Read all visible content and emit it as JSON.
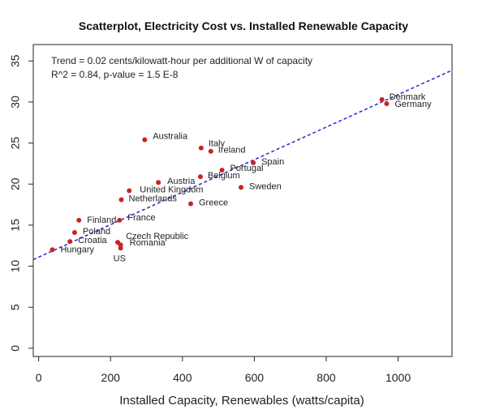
{
  "chart_data": {
    "type": "scatter",
    "title": "Scatterplot, Electricity Cost vs. Installed Renewable Capacity",
    "xlabel": "Installed Capacity, Renewables (watts/capita)",
    "ylabel": "",
    "xlim": [
      -15,
      1150
    ],
    "ylim": [
      -1,
      37
    ],
    "xticks": [
      0,
      200,
      400,
      600,
      800,
      1000
    ],
    "yticks": [
      0,
      5,
      10,
      15,
      20,
      25,
      30,
      35
    ],
    "annotations": [
      "Trend = 0.02 cents/kilowatt-hour per additional  W of capacity",
      "R^2 = 0.84, p-value = 1.5 E-8"
    ],
    "trendline": {
      "intercept": 11.1,
      "slope": 0.0198
    },
    "point_color": "#cc2222",
    "trend_color": "#3333cc",
    "points": [
      {
        "label": "Denmark",
        "x": 955,
        "y": 30.3
      },
      {
        "label": "Germany",
        "x": 968,
        "y": 29.8
      },
      {
        "label": "Australia",
        "x": 295,
        "y": 25.4
      },
      {
        "label": "Italy",
        "x": 452,
        "y": 24.4
      },
      {
        "label": "Ireland",
        "x": 479,
        "y": 24.0
      },
      {
        "label": "Spain",
        "x": 597,
        "y": 22.6
      },
      {
        "label": "Portugal",
        "x": 510,
        "y": 21.7
      },
      {
        "label": "Belgium",
        "x": 450,
        "y": 20.9
      },
      {
        "label": "Austria",
        "x": 333,
        "y": 20.2
      },
      {
        "label": "Sweden",
        "x": 563,
        "y": 19.6
      },
      {
        "label": "United Kingdom",
        "x": 252,
        "y": 19.2
      },
      {
        "label": "Netherlands",
        "x": 230,
        "y": 18.1
      },
      {
        "label": "Greece",
        "x": 423,
        "y": 17.6
      },
      {
        "label": "Finland",
        "x": 112,
        "y": 15.6
      },
      {
        "label": "France",
        "x": 225,
        "y": 15.6
      },
      {
        "label": "Poland",
        "x": 100,
        "y": 14.1
      },
      {
        "label": "Croatia",
        "x": 87,
        "y": 13.0
      },
      {
        "label": "Czech Republic",
        "x": 220,
        "y": 12.9
      },
      {
        "label": "Romania",
        "x": 228,
        "y": 12.6
      },
      {
        "label": "Hungary",
        "x": 38,
        "y": 12.0
      },
      {
        "label": "US",
        "x": 228,
        "y": 12.2
      }
    ]
  }
}
